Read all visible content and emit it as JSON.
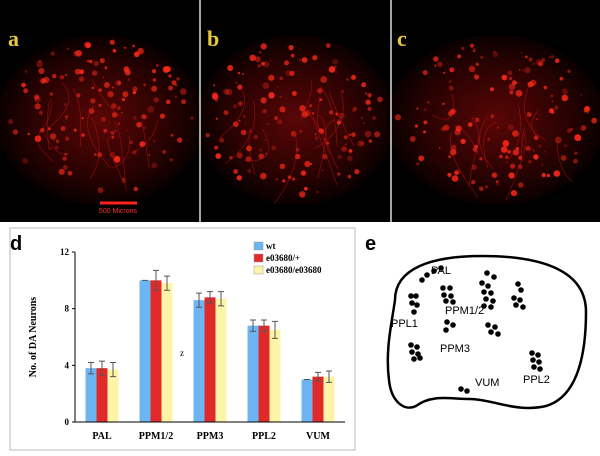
{
  "panels": [
    {
      "label": "a"
    },
    {
      "label": "b"
    },
    {
      "label": "c"
    }
  ],
  "scale_bar": "500 Microns",
  "chart_data": {
    "type": "bar",
    "panel_label": "d",
    "y_label": "No. of DA Neurons",
    "categories": [
      "PAL",
      "PPM1/2",
      "PPM3",
      "PPL2",
      "VUM"
    ],
    "series": [
      {
        "name": "wt",
        "color": "#6cb4f2",
        "values": [
          3.8,
          10,
          8.6,
          6.8,
          3.0
        ],
        "errors": [
          0.4,
          0,
          0.5,
          0.4,
          0
        ]
      },
      {
        "name": "e03680/+",
        "color": "#e02a2a",
        "values": [
          3.8,
          10,
          8.8,
          6.8,
          3.2
        ],
        "errors": [
          0.5,
          0.7,
          0.4,
          0.4,
          0.3
        ]
      },
      {
        "name": "e03680/e03680",
        "color": "#fdf4a8",
        "values": [
          3.7,
          9.8,
          8.7,
          6.5,
          3.2
        ],
        "errors": [
          0.5,
          0.5,
          0.5,
          0.6,
          0.4
        ]
      }
    ],
    "ylim": [
      0,
      12
    ],
    "yticks": [
      0,
      4,
      8,
      12
    ],
    "annotation": "z"
  },
  "diagram": {
    "panel_label": "e",
    "labels": [
      "PAL",
      "PPL1",
      "PPM1/2",
      "PPM3",
      "VUM",
      "PPL2"
    ]
  }
}
